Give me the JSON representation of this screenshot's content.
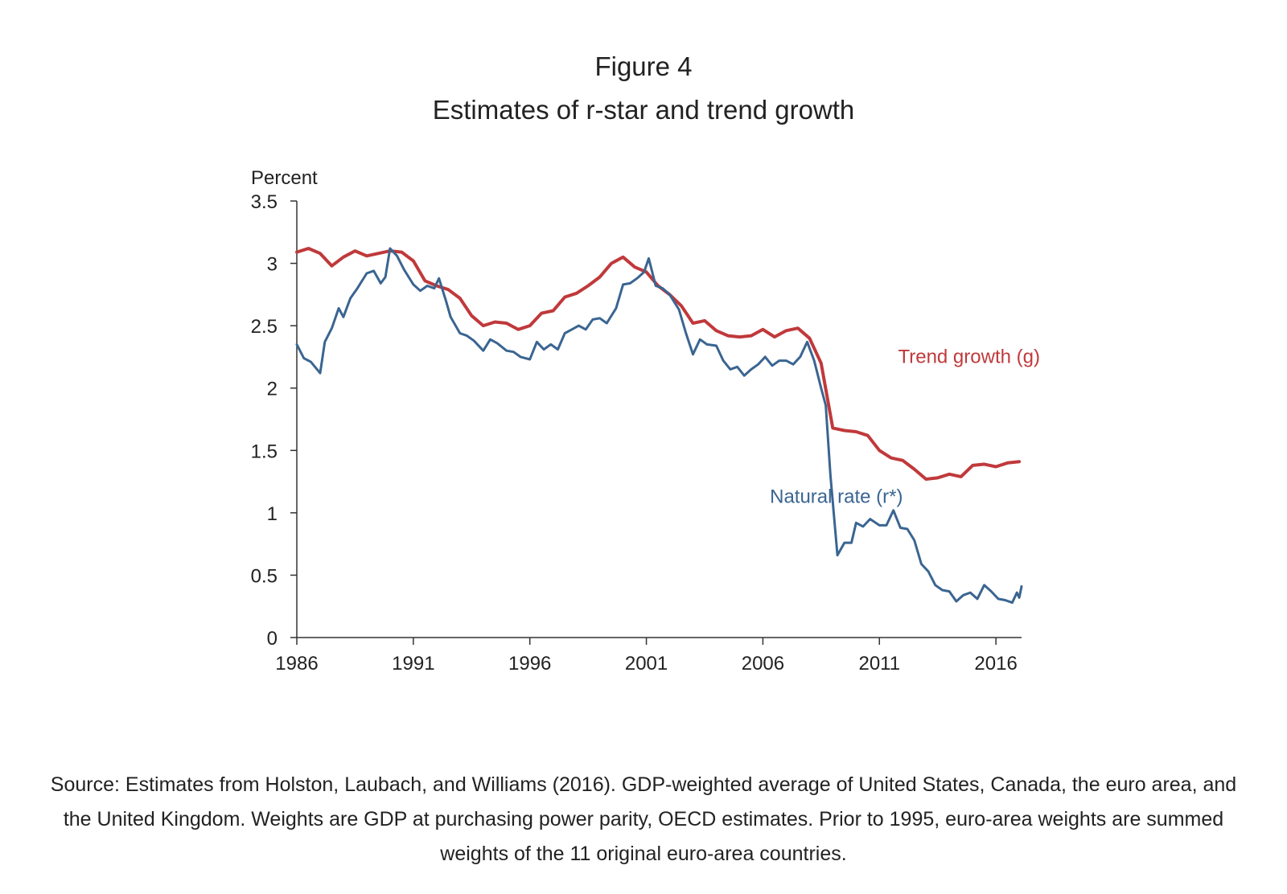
{
  "figure": {
    "number": "Figure 4",
    "subtitle": "Estimates of r-star and trend growth"
  },
  "source_note": "Source: Estimates from Holston, Laubach, and Williams (2016). GDP-weighted average of United States, Canada, the euro area, and the United Kingdom. Weights are GDP at purchasing power parity, OECD estimates. Prior to 1995, euro-area weights are summed weights of the 11 original euro-area countries.",
  "chart_data": {
    "type": "line",
    "title": "Figure 4",
    "subtitle": "Estimates of r-star and trend growth",
    "ylabel": "Percent",
    "xlabel": "",
    "ylim": [
      0,
      3.5
    ],
    "xlim": [
      1986,
      2017.1
    ],
    "yticks": [
      0,
      0.5,
      1,
      1.5,
      2,
      2.5,
      3,
      3.5
    ],
    "ytick_labels": [
      "0",
      "0.5",
      "1",
      "1.5",
      "2",
      "2.5",
      "3",
      "3.5"
    ],
    "xticks": [
      1986,
      1991,
      1996,
      2001,
      2006,
      2011,
      2016
    ],
    "xtick_labels": [
      "1986",
      "1991",
      "1996",
      "2001",
      "2006",
      "2011",
      "2016"
    ],
    "grid": false,
    "series": [
      {
        "name": "Trend growth (g)",
        "color": "#c0393b",
        "label_anchor": [
          2011.8,
          2.2
        ],
        "points": [
          [
            1986.0,
            3.09
          ],
          [
            1986.5,
            3.12
          ],
          [
            1987.0,
            3.08
          ],
          [
            1987.5,
            2.98
          ],
          [
            1988.0,
            3.05
          ],
          [
            1988.5,
            3.1
          ],
          [
            1989.0,
            3.06
          ],
          [
            1989.5,
            3.08
          ],
          [
            1990.0,
            3.1
          ],
          [
            1990.5,
            3.09
          ],
          [
            1991.0,
            3.02
          ],
          [
            1991.5,
            2.86
          ],
          [
            1992.0,
            2.82
          ],
          [
            1992.5,
            2.79
          ],
          [
            1993.0,
            2.72
          ],
          [
            1993.5,
            2.58
          ],
          [
            1994.0,
            2.5
          ],
          [
            1994.5,
            2.53
          ],
          [
            1995.0,
            2.52
          ],
          [
            1995.5,
            2.47
          ],
          [
            1996.0,
            2.5
          ],
          [
            1996.5,
            2.6
          ],
          [
            1997.0,
            2.62
          ],
          [
            1997.5,
            2.73
          ],
          [
            1998.0,
            2.76
          ],
          [
            1998.5,
            2.82
          ],
          [
            1999.0,
            2.89
          ],
          [
            1999.5,
            3.0
          ],
          [
            2000.0,
            3.05
          ],
          [
            2000.5,
            2.97
          ],
          [
            2001.0,
            2.93
          ],
          [
            2001.5,
            2.82
          ],
          [
            2002.0,
            2.75
          ],
          [
            2002.5,
            2.66
          ],
          [
            2003.0,
            2.52
          ],
          [
            2003.5,
            2.54
          ],
          [
            2004.0,
            2.46
          ],
          [
            2004.5,
            2.42
          ],
          [
            2005.0,
            2.41
          ],
          [
            2005.5,
            2.42
          ],
          [
            2006.0,
            2.47
          ],
          [
            2006.5,
            2.41
          ],
          [
            2007.0,
            2.46
          ],
          [
            2007.5,
            2.48
          ],
          [
            2008.0,
            2.4
          ],
          [
            2008.5,
            2.2
          ],
          [
            2009.0,
            1.68
          ],
          [
            2009.5,
            1.66
          ],
          [
            2010.0,
            1.65
          ],
          [
            2010.5,
            1.62
          ],
          [
            2011.0,
            1.5
          ],
          [
            2011.5,
            1.44
          ],
          [
            2012.0,
            1.42
          ],
          [
            2012.5,
            1.35
          ],
          [
            2013.0,
            1.27
          ],
          [
            2013.5,
            1.28
          ],
          [
            2014.0,
            1.31
          ],
          [
            2014.5,
            1.29
          ],
          [
            2015.0,
            1.38
          ],
          [
            2015.5,
            1.39
          ],
          [
            2016.0,
            1.37
          ],
          [
            2016.5,
            1.4
          ],
          [
            2017.0,
            1.41
          ]
        ]
      },
      {
        "name": "Natural rate (r*)",
        "color": "#3a6591",
        "label_anchor": [
          2006.3,
          1.08
        ],
        "points": [
          [
            1986.0,
            2.35
          ],
          [
            1986.3,
            2.24
          ],
          [
            1986.6,
            2.21
          ],
          [
            1987.0,
            2.12
          ],
          [
            1987.2,
            2.37
          ],
          [
            1987.5,
            2.48
          ],
          [
            1987.8,
            2.64
          ],
          [
            1988.0,
            2.57
          ],
          [
            1988.3,
            2.72
          ],
          [
            1988.6,
            2.8
          ],
          [
            1989.0,
            2.92
          ],
          [
            1989.3,
            2.94
          ],
          [
            1989.6,
            2.84
          ],
          [
            1989.8,
            2.89
          ],
          [
            1990.0,
            3.12
          ],
          [
            1990.3,
            3.06
          ],
          [
            1990.6,
            2.95
          ],
          [
            1991.0,
            2.83
          ],
          [
            1991.3,
            2.78
          ],
          [
            1991.6,
            2.82
          ],
          [
            1991.9,
            2.8
          ],
          [
            1992.1,
            2.88
          ],
          [
            1992.4,
            2.7
          ],
          [
            1992.6,
            2.57
          ],
          [
            1993.0,
            2.44
          ],
          [
            1993.3,
            2.42
          ],
          [
            1993.6,
            2.38
          ],
          [
            1994.0,
            2.3
          ],
          [
            1994.3,
            2.39
          ],
          [
            1994.6,
            2.36
          ],
          [
            1995.0,
            2.3
          ],
          [
            1995.3,
            2.29
          ],
          [
            1995.6,
            2.25
          ],
          [
            1996.0,
            2.23
          ],
          [
            1996.3,
            2.37
          ],
          [
            1996.6,
            2.31
          ],
          [
            1996.9,
            2.35
          ],
          [
            1997.2,
            2.31
          ],
          [
            1997.5,
            2.44
          ],
          [
            1997.8,
            2.47
          ],
          [
            1998.1,
            2.5
          ],
          [
            1998.4,
            2.47
          ],
          [
            1998.7,
            2.55
          ],
          [
            1999.0,
            2.56
          ],
          [
            1999.3,
            2.52
          ],
          [
            1999.7,
            2.64
          ],
          [
            2000.0,
            2.83
          ],
          [
            2000.3,
            2.84
          ],
          [
            2000.6,
            2.88
          ],
          [
            2000.9,
            2.93
          ],
          [
            2001.1,
            3.04
          ],
          [
            2001.4,
            2.82
          ],
          [
            2001.7,
            2.8
          ],
          [
            2002.0,
            2.75
          ],
          [
            2002.4,
            2.63
          ],
          [
            2002.7,
            2.44
          ],
          [
            2003.0,
            2.27
          ],
          [
            2003.3,
            2.39
          ],
          [
            2003.6,
            2.35
          ],
          [
            2004.0,
            2.34
          ],
          [
            2004.3,
            2.22
          ],
          [
            2004.6,
            2.15
          ],
          [
            2004.9,
            2.17
          ],
          [
            2005.2,
            2.1
          ],
          [
            2005.5,
            2.15
          ],
          [
            2005.8,
            2.19
          ],
          [
            2006.1,
            2.25
          ],
          [
            2006.4,
            2.18
          ],
          [
            2006.7,
            2.22
          ],
          [
            2007.0,
            2.22
          ],
          [
            2007.3,
            2.19
          ],
          [
            2007.6,
            2.25
          ],
          [
            2007.9,
            2.37
          ],
          [
            2008.2,
            2.22
          ],
          [
            2008.5,
            2.0
          ],
          [
            2008.7,
            1.86
          ],
          [
            2008.9,
            1.3
          ],
          [
            2009.2,
            0.66
          ],
          [
            2009.5,
            0.76
          ],
          [
            2009.8,
            0.76
          ],
          [
            2010.0,
            0.92
          ],
          [
            2010.3,
            0.89
          ],
          [
            2010.6,
            0.95
          ],
          [
            2011.0,
            0.9
          ],
          [
            2011.3,
            0.9
          ],
          [
            2011.6,
            1.02
          ],
          [
            2011.9,
            0.88
          ],
          [
            2012.2,
            0.87
          ],
          [
            2012.5,
            0.78
          ],
          [
            2012.8,
            0.59
          ],
          [
            2013.1,
            0.53
          ],
          [
            2013.4,
            0.42
          ],
          [
            2013.7,
            0.38
          ],
          [
            2014.0,
            0.37
          ],
          [
            2014.3,
            0.29
          ],
          [
            2014.6,
            0.34
          ],
          [
            2014.9,
            0.36
          ],
          [
            2015.2,
            0.31
          ],
          [
            2015.5,
            0.42
          ],
          [
            2015.8,
            0.37
          ],
          [
            2016.1,
            0.31
          ],
          [
            2016.4,
            0.3
          ],
          [
            2016.7,
            0.28
          ],
          [
            2016.9,
            0.36
          ],
          [
            2017.0,
            0.32
          ],
          [
            2017.1,
            0.41
          ]
        ]
      }
    ]
  }
}
